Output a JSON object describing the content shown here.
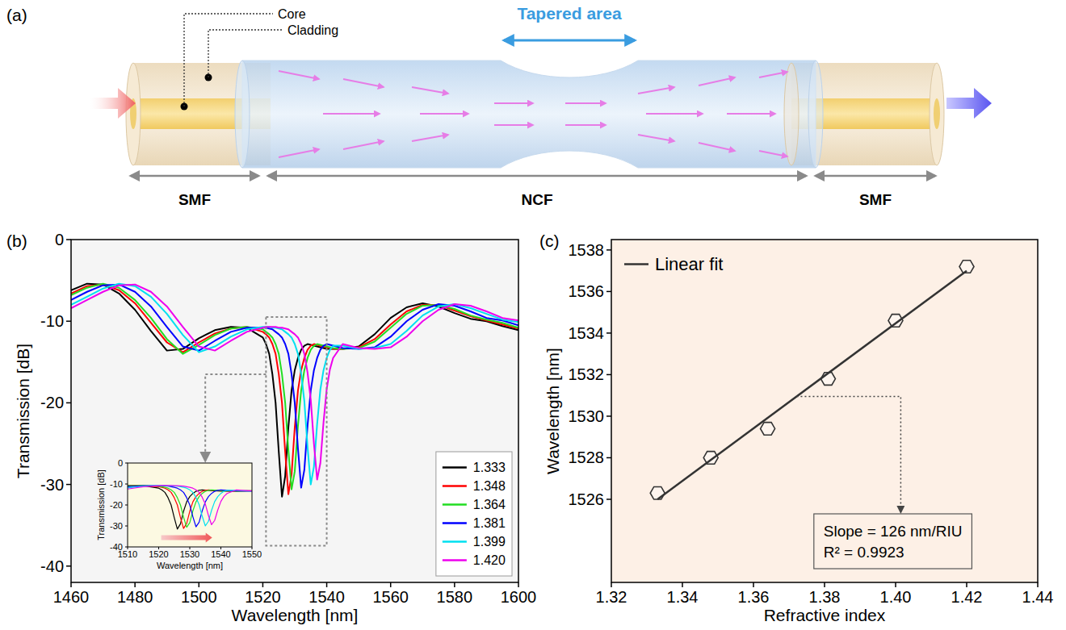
{
  "diagram": {
    "panel": "(a)",
    "labels": {
      "core": "Core",
      "cladding": "Cladding",
      "tapered_area": "Tapered area"
    },
    "sections": [
      "SMF",
      "NCF",
      "SMF"
    ]
  },
  "chart_data": [
    {
      "type": "line",
      "panel": "(b)",
      "xlabel": "Wavelength [nm]",
      "ylabel": "Transmission [dB]",
      "x": [
        1460,
        1465,
        1470,
        1475,
        1480,
        1485,
        1490,
        1495,
        1500,
        1505,
        1510,
        1515,
        1520,
        1521,
        1522,
        1523,
        1524,
        1525,
        1526,
        1527,
        1528,
        1529,
        1530,
        1531,
        1532,
        1533,
        1534,
        1535,
        1536,
        1537,
        1538,
        1539,
        1540,
        1541,
        1542,
        1545,
        1550,
        1555,
        1560,
        1565,
        1570,
        1575,
        1580,
        1585,
        1590,
        1595,
        1600
      ],
      "xlim": [
        1460,
        1600
      ],
      "xticks": [
        1460,
        1480,
        1500,
        1520,
        1540,
        1560,
        1580,
        1600
      ],
      "ylim": [
        -42,
        0
      ],
      "yticks": [
        0,
        -10,
        -20,
        -30,
        -40
      ],
      "legend": "lower right",
      "series": [
        {
          "name": "1.333",
          "color": "#000000",
          "values": [
            -6.2,
            -5.4,
            -5.5,
            -6.6,
            -8.6,
            -11.2,
            -13.6,
            -13.4,
            -12.1,
            -11.1,
            -10.7,
            -10.8,
            -12.0,
            -12.8,
            -14.0,
            -16.5,
            -20.0,
            -26.0,
            -31.5,
            -29.0,
            -23.0,
            -18.5,
            -16.0,
            -14.5,
            -13.5,
            -13.0,
            -12.8,
            -12.9,
            -13.0,
            -13.1,
            -13.2,
            -13.3,
            -13.4,
            -13.4,
            -13.4,
            -13.4,
            -13.1,
            -11.6,
            -9.6,
            -8.3,
            -7.8,
            -8.2,
            -9.0,
            -9.7,
            -10.0,
            -10.6,
            -11.1
          ]
        },
        {
          "name": "1.348",
          "color": "#ff0000",
          "values": [
            -6.6,
            -5.7,
            -5.5,
            -6.2,
            -7.8,
            -10.2,
            -12.6,
            -13.8,
            -12.6,
            -11.5,
            -10.9,
            -10.7,
            -11.3,
            -11.6,
            -12.0,
            -12.8,
            -14.0,
            -16.5,
            -20.0,
            -26.0,
            -31.2,
            -28.8,
            -23.0,
            -18.5,
            -16.0,
            -14.5,
            -13.5,
            -13.0,
            -12.8,
            -12.9,
            -13.0,
            -13.1,
            -13.2,
            -13.3,
            -13.4,
            -13.4,
            -13.2,
            -12.2,
            -10.4,
            -8.8,
            -8.0,
            -8.0,
            -8.7,
            -9.4,
            -9.9,
            -10.4,
            -10.9
          ]
        },
        {
          "name": "1.364",
          "color": "#22dd22",
          "values": [
            -6.8,
            -5.9,
            -5.4,
            -5.9,
            -7.4,
            -9.6,
            -12.2,
            -14.0,
            -12.9,
            -11.7,
            -10.9,
            -10.7,
            -11.0,
            -11.3,
            -11.6,
            -12.0,
            -12.8,
            -14.0,
            -16.5,
            -20.0,
            -25.8,
            -30.6,
            -28.4,
            -22.8,
            -18.5,
            -16.0,
            -14.5,
            -13.5,
            -13.0,
            -12.8,
            -12.9,
            -13.0,
            -13.1,
            -13.2,
            -13.3,
            -13.4,
            -13.3,
            -12.5,
            -10.8,
            -9.1,
            -8.1,
            -8.0,
            -8.5,
            -9.3,
            -9.8,
            -10.2,
            -10.8
          ]
        },
        {
          "name": "1.381",
          "color": "#0000ff",
          "values": [
            -7.4,
            -6.4,
            -5.6,
            -5.5,
            -6.4,
            -8.2,
            -10.7,
            -13.1,
            -13.6,
            -12.4,
            -11.3,
            -10.8,
            -10.8,
            -10.8,
            -10.9,
            -11.0,
            -11.3,
            -11.6,
            -12.0,
            -12.8,
            -14.0,
            -16.5,
            -20.0,
            -25.6,
            -30.4,
            -28.2,
            -22.8,
            -18.5,
            -16.0,
            -14.5,
            -13.5,
            -13.0,
            -12.8,
            -12.9,
            -13.0,
            -13.3,
            -13.4,
            -13.2,
            -11.9,
            -10.0,
            -8.6,
            -7.9,
            -8.1,
            -8.8,
            -9.6,
            -9.9,
            -10.5
          ]
        },
        {
          "name": "1.399",
          "color": "#00e0f0",
          "values": [
            -8.0,
            -7.0,
            -6.0,
            -5.4,
            -5.7,
            -7.0,
            -9.1,
            -11.7,
            -13.8,
            -13.1,
            -11.9,
            -11.0,
            -10.7,
            -10.7,
            -10.7,
            -10.8,
            -10.8,
            -10.9,
            -11.0,
            -11.3,
            -11.6,
            -12.0,
            -12.8,
            -14.0,
            -16.4,
            -19.8,
            -25.4,
            -30.0,
            -27.8,
            -22.6,
            -18.4,
            -16.0,
            -14.5,
            -13.5,
            -13.0,
            -13.0,
            -13.4,
            -13.3,
            -12.8,
            -11.2,
            -9.3,
            -8.2,
            -7.9,
            -8.4,
            -9.1,
            -9.8,
            -10.1
          ]
        },
        {
          "name": "1.420",
          "color": "#ee00ee",
          "values": [
            -8.4,
            -7.4,
            -6.4,
            -5.6,
            -5.5,
            -6.4,
            -8.2,
            -10.7,
            -13.1,
            -13.6,
            -12.4,
            -11.3,
            -10.8,
            -10.7,
            -10.7,
            -10.7,
            -10.7,
            -10.8,
            -10.8,
            -10.9,
            -11.0,
            -11.3,
            -11.6,
            -12.0,
            -12.8,
            -14.0,
            -16.3,
            -19.6,
            -25.0,
            -29.4,
            -27.4,
            -22.4,
            -18.3,
            -15.9,
            -14.5,
            -12.8,
            -13.3,
            -13.4,
            -13.2,
            -11.9,
            -10.0,
            -8.6,
            -7.9,
            -8.1,
            -8.8,
            -9.6,
            -9.9
          ]
        }
      ],
      "inset": {
        "xlabel": "Wavelength [nm]",
        "ylabel": "Transmission [dB]",
        "xlim": [
          1510,
          1550
        ],
        "xticks": [
          1510,
          1520,
          1530,
          1540,
          1550
        ],
        "ylim": [
          -40,
          0
        ],
        "yticks": [
          0,
          -10,
          -20,
          -30,
          -40
        ]
      }
    },
    {
      "type": "scatter",
      "panel": "(c)",
      "xlabel": "Refractive index",
      "ylabel": "Wavelength [nm]",
      "x": [
        1.333,
        1.348,
        1.364,
        1.381,
        1.4,
        1.42
      ],
      "xlim": [
        1.32,
        1.44
      ],
      "xticks": [
        1.32,
        1.34,
        1.36,
        1.38,
        {
          "value": 1.4,
          "label": "1.40"
        },
        1.42,
        1.44
      ],
      "ylim": [
        1522,
        1538.5
      ],
      "yticks": [
        1526,
        1528,
        1530,
        1532,
        1534,
        1536,
        1538
      ],
      "legend": "upper left",
      "series": [
        {
          "color": "#333333",
          "marker": "hexagon",
          "values": [
            1526.3,
            1528.0,
            1529.4,
            1531.8,
            1534.6,
            1537.2
          ]
        },
        {
          "name": "Linear fit",
          "type": "line",
          "color": "#333333",
          "x": [
            1.333,
            1.42
          ],
          "values": [
            1526.0,
            1537.0
          ]
        }
      ],
      "annotations": [
        "Slope = 126 nm/RIU",
        "R² = 0.9923"
      ]
    }
  ]
}
